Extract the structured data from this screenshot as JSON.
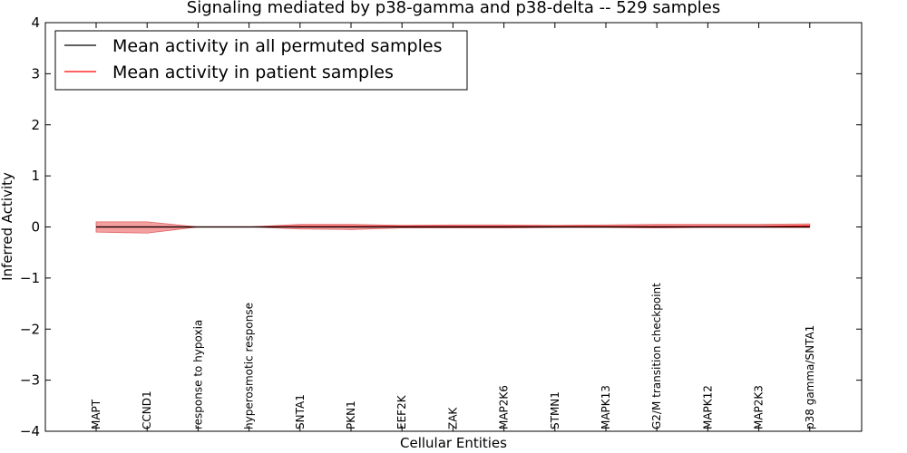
{
  "chart_data": {
    "type": "line",
    "title": "Signaling mediated by p38-gamma and p38-delta -- 529 samples",
    "xlabel": "Cellular Entities",
    "ylabel": "Inferred Activity",
    "ylim": [
      -4,
      4
    ],
    "yticks": [
      "−4",
      "−3",
      "−2",
      "−1",
      "0",
      "1",
      "2",
      "3",
      "4"
    ],
    "ytick_values": [
      -4,
      -3,
      -2,
      -1,
      0,
      1,
      2,
      3,
      4
    ],
    "categories": [
      "MAPT",
      "CCND1",
      "response to hypoxia",
      "hyperosmotic response",
      "SNTA1",
      "PKN1",
      "EEF2K",
      "ZAK",
      "MAP2K6",
      "STMN1",
      "MAPK13",
      "G2/M transition checkpoint",
      "MAPK12",
      "MAP2K3",
      "p38 gamma/SNTA1"
    ],
    "series": [
      {
        "name": "Mean activity in all permuted samples",
        "color": "#000000",
        "values": [
          0.0,
          0.0,
          0.0,
          0.0,
          0.0,
          0.0,
          0.0,
          0.0,
          0.0,
          0.0,
          0.0,
          0.0,
          0.0,
          0.0,
          0.0
        ],
        "band_upper": [
          0.01,
          0.01,
          0.005,
          0.005,
          0.005,
          0.005,
          0.005,
          0.005,
          0.005,
          0.005,
          0.005,
          0.005,
          0.005,
          0.005,
          0.005
        ],
        "band_lower": [
          -0.01,
          -0.01,
          -0.005,
          -0.005,
          -0.005,
          -0.005,
          -0.005,
          -0.02,
          -0.01,
          -0.01,
          -0.01,
          -0.02,
          -0.01,
          -0.01,
          -0.01
        ],
        "band_color": "#9999bb"
      },
      {
        "name": "Mean activity in patient samples",
        "color": "#ff0000",
        "values": [
          0.0,
          0.0,
          0.0,
          0.0,
          0.01,
          0.01,
          0.01,
          0.01,
          0.01,
          0.01,
          0.01,
          0.01,
          0.01,
          0.01,
          0.02
        ],
        "band_upper": [
          0.1,
          0.1,
          0.0,
          0.0,
          0.05,
          0.05,
          0.03,
          0.04,
          0.04,
          0.03,
          0.04,
          0.05,
          0.05,
          0.05,
          0.06
        ],
        "band_lower": [
          -0.1,
          -0.12,
          0.0,
          0.0,
          -0.04,
          -0.05,
          -0.02,
          -0.02,
          -0.02,
          -0.01,
          -0.01,
          -0.02,
          -0.01,
          -0.01,
          -0.01
        ],
        "band_color": "#f08080"
      }
    ],
    "legend_position": "top-left"
  }
}
